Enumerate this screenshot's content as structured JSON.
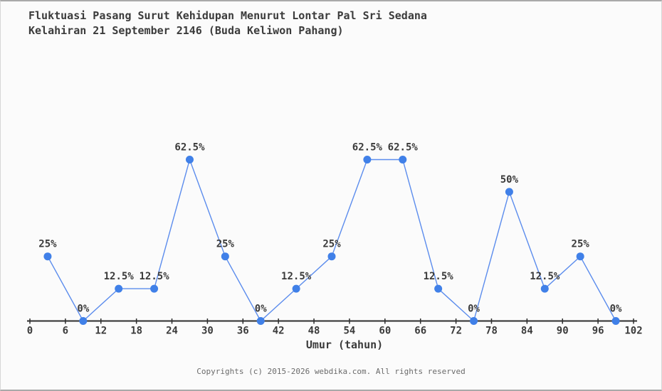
{
  "chart": {
    "title_line1": "Fluktuasi Pasang Surut Kehidupan Menurut Lontar Pal Sri Sedana",
    "title_line2": "Kelahiran 21 September 2146 (Buda Keliwon Pahang)",
    "xlabel": "Umur (tahun)",
    "footer": "Copyrights (c) 2015-2026 webdika.com. All rights reserved"
  },
  "chart_data": {
    "type": "line",
    "title": "Fluktuasi Pasang Surut Kehidupan Menurut Lontar Pal Sri Sedana Kelahiran 21 September 2146 (Buda Keliwon Pahang)",
    "xlabel": "Umur (tahun)",
    "ylabel": "",
    "x": [
      3,
      9,
      15,
      21,
      27,
      33,
      39,
      45,
      51,
      57,
      63,
      69,
      75,
      81,
      87,
      93,
      99
    ],
    "values": [
      25,
      0,
      12.5,
      12.5,
      62.5,
      25,
      0,
      12.5,
      25,
      62.5,
      62.5,
      12.5,
      0,
      50,
      12.5,
      25,
      0
    ],
    "point_labels": [
      "25%",
      "0%",
      "12.5%",
      "12.5%",
      "62.5%",
      "25%",
      "0%",
      "12.5%",
      "25%",
      "62.5%",
      "62.5%",
      "12.5%",
      "0%",
      "50%",
      "12.5%",
      "25%",
      "0%"
    ],
    "x_ticks": [
      0,
      6,
      12,
      18,
      24,
      30,
      36,
      42,
      48,
      54,
      60,
      66,
      72,
      78,
      84,
      90,
      96,
      102
    ],
    "xlim": [
      0,
      102
    ],
    "ylim": [
      0,
      70
    ],
    "grid": false,
    "legend": false,
    "line_color": "#5b8ced",
    "marker_color": "#4080e8",
    "axis_color": "#2e2e2e",
    "label_color": "#3a3a3a"
  }
}
